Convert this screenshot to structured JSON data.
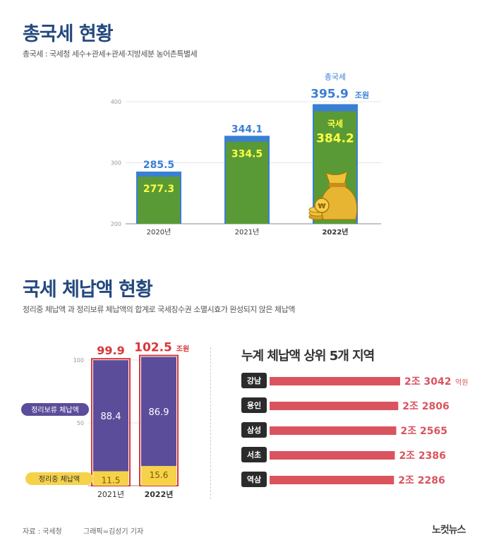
{
  "section1": {
    "title": "총국세 현황",
    "subtitle": "총국세 : 국세청 세수+관세+관세·지방세분 농어촌특별세",
    "chart": {
      "type": "bar",
      "categories": [
        "2020년",
        "2021년",
        "2022년"
      ],
      "series": [
        {
          "name": "총국세",
          "values": [
            285.5,
            344.1,
            395.9
          ]
        },
        {
          "name": "국세",
          "values": [
            277.3,
            334.5,
            384.2
          ]
        }
      ],
      "value_labels_total": [
        "285.5",
        "344.1",
        "395.9"
      ],
      "value_labels_inner": [
        "277.3",
        "334.5",
        "384.2"
      ],
      "y_ticks": [
        "200",
        "300",
        "400"
      ],
      "ylim": [
        200,
        400
      ],
      "annotation_total_label": "총국세",
      "annotation_unit": "조원",
      "annotation_inner_label": "국세",
      "colors": {
        "total": "#3a7fd4",
        "inner": "#5a9a36",
        "total_text": "#3a7fd4",
        "inner_text": "#ffff44"
      }
    }
  },
  "section2": {
    "title": "국세 체납액 현황",
    "subtitle": "정리중 체납액 과 정리보류 체납액의 합계로 국세징수권 소멸시효가 완성되지 않은 체납액",
    "chart": {
      "type": "bar",
      "categories": [
        "2021년",
        "2022년"
      ],
      "series": [
        {
          "name": "정리보류 체납액",
          "values": [
            88.4,
            86.9
          ]
        },
        {
          "name": "정리중 체납액",
          "values": [
            11.5,
            15.6
          ]
        }
      ],
      "totals": [
        "99.9",
        "102.5"
      ],
      "total_unit": "조원",
      "upper_labels": [
        "88.4",
        "86.9"
      ],
      "lower_labels": [
        "11.5",
        "15.6"
      ],
      "y_ticks": [
        "50",
        "100"
      ],
      "ylim": [
        0,
        100
      ],
      "legend_upper": "정리보류 체납액",
      "legend_lower": "정리중 체납액",
      "colors": {
        "upper": "#5b4d9a",
        "lower": "#f5d24a",
        "total_text": "#d9363a",
        "frame": "#d9363a"
      }
    },
    "ranking": {
      "title": "누계 체납액 상위 5개 지역",
      "unit": "억원",
      "items": [
        {
          "region": "강남",
          "label": "2조 3042",
          "value": 23042
        },
        {
          "region": "용인",
          "label": "2조 2806",
          "value": 22806
        },
        {
          "region": "삼성",
          "label": "2조 2565",
          "value": 22565
        },
        {
          "region": "서초",
          "label": "2조 2386",
          "value": 22386
        },
        {
          "region": "역삼",
          "label": "2조 2286",
          "value": 22286
        }
      ],
      "bar_color": "#d9545e"
    }
  },
  "footer": {
    "source": "자료 : 국세청",
    "credit": "그래픽=김성기 기자",
    "logo": "노컷뉴스"
  }
}
